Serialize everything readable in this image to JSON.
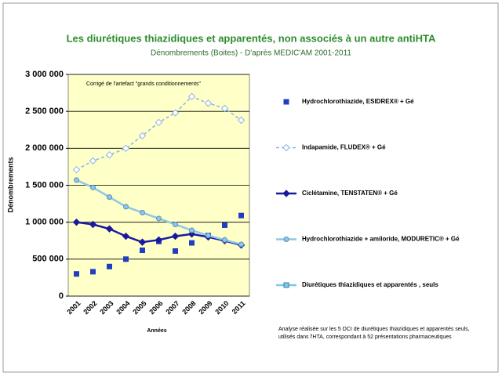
{
  "chart_data": {
    "type": "line",
    "title": "Les diurétiques thiazidiques et apparentés, non associés à un autre antiHTA",
    "subtitle": "Dénombrements (Boites) - D'après MEDIC'AM 2001-2011",
    "annotation": "Corrigé de l'artefact \"grands conditionnements\"",
    "note": [
      "Analyse réalisée sur les 5 DCI de diurétiques thiazidiques et apparentés seuls,",
      "utilisés dans l'HTA, correspondant à 52 présentations pharmaceutiques"
    ],
    "x_label": "Années",
    "y_label": "Dénombrements",
    "categories": [
      "2001",
      "2002",
      "2003",
      "2004",
      "2005",
      "2006",
      "2007",
      "2008",
      "2009",
      "2010",
      "2011"
    ],
    "ylim": [
      0,
      3000000
    ],
    "yticks": [
      0,
      {
        "value": 500000,
        "label": "500 000"
      },
      {
        "value": 1000000,
        "label": "1 000 000"
      },
      {
        "value": 1500000,
        "label": "1 500 000"
      },
      {
        "value": 2000000,
        "label": "2 000 000"
      },
      {
        "value": 2500000,
        "label": "2 500 000"
      },
      {
        "value": 3000000,
        "label": "3 000 000"
      }
    ],
    "grid": true,
    "legend": "right",
    "series": [
      {
        "name": "Hydrochlorothiazide, ESIDREX® + Gé",
        "color": "#1f3fbf",
        "line": false,
        "marker": "square",
        "values": [
          300000,
          330000,
          400000,
          500000,
          620000,
          740000,
          610000,
          720000,
          820000,
          960000,
          1090000
        ]
      },
      {
        "name": "Indapamide, FLUDEX® + Gé",
        "color": "#8db3e2",
        "line": true,
        "dash": true,
        "marker": "diamond",
        "values": [
          1710000,
          1830000,
          1910000,
          2000000,
          2170000,
          2350000,
          2480000,
          2700000,
          2610000,
          2540000,
          2380000
        ]
      },
      {
        "name": "Ciclétamine, TENSTATEN® + Gé",
        "color": "#1a1aa0",
        "line": true,
        "dash": false,
        "marker": "diamond",
        "values": [
          1000000,
          970000,
          910000,
          810000,
          730000,
          760000,
          810000,
          840000,
          800000,
          750000,
          690000
        ]
      },
      {
        "name": "Hydrochlorothiazide + amiloride, MODURETIC® + Gé",
        "color": "#8ec8e8",
        "line": true,
        "dash": false,
        "marker": "circle",
        "values": [
          1570000,
          1470000,
          1340000,
          1210000,
          1130000,
          1050000,
          970000,
          890000,
          820000,
          760000,
          700000
        ]
      },
      {
        "name": "Diurétiques thiazidiques et apparentés , seuls",
        "color": "#7ec8e8",
        "line": true,
        "dash": false,
        "marker": "square",
        "values": [
          null,
          null,
          null,
          null,
          null,
          null,
          null,
          null,
          null,
          null,
          null
        ]
      }
    ]
  }
}
